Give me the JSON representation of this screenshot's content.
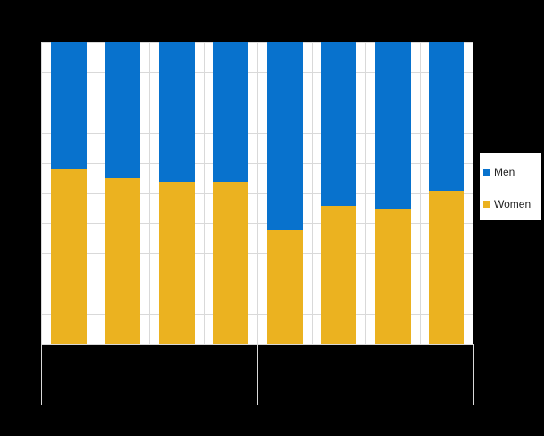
{
  "chart_data": {
    "type": "bar",
    "stacked": true,
    "percent_stacked": true,
    "title": "",
    "xlabel": "",
    "ylabel": "",
    "ylim": [
      0,
      100
    ],
    "yticks": [
      0,
      10,
      20,
      30,
      40,
      50,
      60,
      70,
      80,
      90,
      100
    ],
    "grid": true,
    "legend_position": "right",
    "categories": [
      "",
      "",
      "",
      "",
      "",
      "",
      "",
      ""
    ],
    "groups": [
      {
        "label": "",
        "bars": [
          0,
          1,
          2,
          3
        ]
      },
      {
        "label": "",
        "bars": [
          4,
          5,
          6,
          7
        ]
      }
    ],
    "series": [
      {
        "name": "Women",
        "color": "#ebb220",
        "values": [
          57.8,
          54.9,
          53.7,
          53.7,
          37.8,
          45.7,
          44.8,
          50.7
        ]
      },
      {
        "name": "Men",
        "color": "#0872cd",
        "values": [
          42.2,
          45.1,
          46.3,
          46.3,
          62.2,
          54.3,
          55.2,
          49.3
        ]
      }
    ]
  },
  "legend": {
    "items": [
      {
        "label": "Men",
        "color": "#0872cd"
      },
      {
        "label": "Women",
        "color": "#ebb220"
      }
    ]
  },
  "colors": {
    "background": "#000000",
    "plot_background": "#ffffff",
    "grid": "#d9d9d9"
  }
}
